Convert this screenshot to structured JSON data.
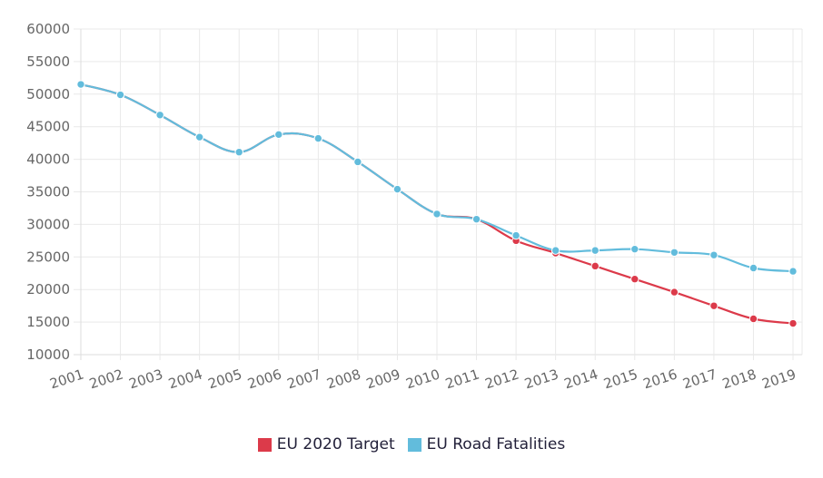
{
  "chart_data": {
    "type": "line",
    "title": "",
    "xlabel": "",
    "ylabel": "",
    "categories": [
      "2001",
      "2002",
      "2003",
      "2004",
      "2005",
      "2006",
      "2007",
      "2008",
      "2009",
      "2010",
      "2011",
      "2012",
      "2013",
      "2014",
      "2015",
      "2016",
      "2017",
      "2018",
      "2019"
    ],
    "ylim": [
      10000,
      60000
    ],
    "yticks": [
      "60000",
      "55000",
      "50000",
      "45000",
      "40000",
      "35000",
      "30000",
      "25000",
      "20000",
      "15000",
      "10000"
    ],
    "ytick_values": [
      60000,
      55000,
      50000,
      45000,
      40000,
      35000,
      30000,
      25000,
      20000,
      15000,
      10000
    ],
    "grid": true,
    "legend_position": "bottom",
    "series": [
      {
        "name": "EU 2020 Target",
        "color": "#dc3a4a",
        "values": [
          51500,
          49900,
          46800,
          43400,
          41100,
          43800,
          43200,
          39600,
          35400,
          31600,
          30800,
          27500,
          25600,
          23600,
          21600,
          19600,
          17500,
          15500,
          14800
        ]
      },
      {
        "name": "EU Road Fatalities",
        "color": "#62bcdc",
        "values": [
          51500,
          49900,
          46800,
          43400,
          41100,
          43800,
          43200,
          39600,
          35400,
          31600,
          30800,
          28300,
          26000,
          26000,
          26200,
          25700,
          25300,
          23300,
          22800
        ]
      }
    ]
  }
}
